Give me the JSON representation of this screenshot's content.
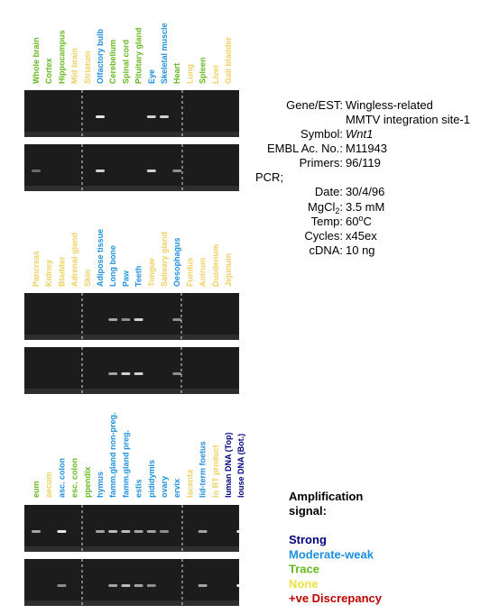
{
  "panels": [
    {
      "lanes": [
        {
          "label": "Whole brain",
          "color": "#66b81f"
        },
        {
          "label": "Cortex",
          "color": "#66b81f"
        },
        {
          "label": "Hippocampus",
          "color": "#66b81f"
        },
        {
          "label": "Mid brain",
          "color": "#f0d060"
        },
        {
          "label": "Striatum",
          "color": "#f0d060"
        },
        {
          "label": "Olfactory bulb",
          "color": "#1e90e0"
        },
        {
          "label": "Cerebellum",
          "color": "#66b81f"
        },
        {
          "label": "Spinal cord",
          "color": "#66b81f"
        },
        {
          "label": "Pituitary gland",
          "color": "#66b81f"
        },
        {
          "label": "Eye",
          "color": "#1e90e0"
        },
        {
          "label": "Skeletal muscle",
          "color": "#1e90e0"
        },
        {
          "label": "Heart",
          "color": "#66b81f"
        },
        {
          "label": "Lung",
          "color": "#f0d060"
        },
        {
          "label": "Spleen",
          "color": "#66b81f"
        },
        {
          "label": "Liver",
          "color": "#f0d060"
        },
        {
          "label": "Gall bladder",
          "color": "#f0d060"
        }
      ]
    },
    {
      "lanes": [
        {
          "label": "Pancreas",
          "color": "#f0d060"
        },
        {
          "label": "Kidney",
          "color": "#f0d060"
        },
        {
          "label": "Bladder",
          "color": "#f0d060"
        },
        {
          "label": "Adrenal gland",
          "color": "#f0d060"
        },
        {
          "label": "Skin",
          "color": "#f0d060"
        },
        {
          "label": "Adipose tissue",
          "color": "#1e90e0"
        },
        {
          "label": "Long bone",
          "color": "#1e90e0"
        },
        {
          "label": "Paw",
          "color": "#1e90e0"
        },
        {
          "label": "Teeth",
          "color": "#1e90e0"
        },
        {
          "label": "Tongue",
          "color": "#f0d060"
        },
        {
          "label": "Salivary gland",
          "color": "#f0d060"
        },
        {
          "label": "Oesophagus",
          "color": "#1e90e0"
        },
        {
          "label": "Fundus",
          "color": "#f0d060"
        },
        {
          "label": "Antrum",
          "color": "#f0d060"
        },
        {
          "label": "Duodenum",
          "color": "#f0d060"
        },
        {
          "label": "Jejunum",
          "color": "#f0d060"
        }
      ]
    },
    {
      "lanes": [
        {
          "label": "eum",
          "color": "#66b81f"
        },
        {
          "label": "aecum",
          "color": "#f0d060"
        },
        {
          "label": "asc. colon",
          "color": "#1e90e0"
        },
        {
          "label": "esc. colon",
          "color": "#66b81f"
        },
        {
          "label": "ppendix",
          "color": "#66b81f"
        },
        {
          "label": "hymus",
          "color": "#1e90e0"
        },
        {
          "label": "famm.gland non-preg.",
          "color": "#1e90e0"
        },
        {
          "label": "famm.gland preg.",
          "color": "#1e90e0"
        },
        {
          "label": "estis",
          "color": "#1e90e0"
        },
        {
          "label": "pididymis",
          "color": "#1e90e0"
        },
        {
          "label": "ovary",
          "color": "#1e90e0"
        },
        {
          "label": "ervix",
          "color": "#1e90e0"
        },
        {
          "label": "lacenta",
          "color": "#f0d060"
        },
        {
          "label": "lid-term foetus",
          "color": "#1e90e0"
        },
        {
          "label": "lo RT product",
          "color": "#f0d060"
        },
        {
          "label": "luman DNA (Top)",
          "color": "#000080"
        },
        {
          "label": "louse DNA (Bot.)",
          "color": "#000080"
        }
      ]
    }
  ],
  "info": {
    "gene_label": "Gene/EST:",
    "gene_line1": "Wingless-related",
    "gene_line2": "MMTV integration site-1",
    "symbol_label": "Symbol:",
    "symbol": "Wnt1",
    "embl_label": "EMBL Ac. No.:",
    "embl": "M11943",
    "primers_label": "Primers:",
    "primers": "96/119",
    "pcr_label": "PCR;",
    "date_label": "Date:",
    "date": "30/4/96",
    "mgcl_label": "MgCl",
    "mgcl_sub": "2",
    "mgcl_colon": ":",
    "mgcl": "3.5 mM",
    "temp_label": "Temp:",
    "temp_num": "60",
    "temp_sup": "o",
    "temp_unit": "C",
    "cycles_label": "Cycles:",
    "cycles": "x45ex",
    "cdna_label": "cDNA:",
    "cdna": "10 ng"
  },
  "legend": {
    "title_line1": "Amplification",
    "title_line2": "signal:",
    "items": [
      {
        "label": "Strong",
        "color": "#000080"
      },
      {
        "label": "Moderate-weak",
        "color": "#1e90e0"
      },
      {
        "label": "Trace",
        "color": "#66b81f"
      },
      {
        "label": "None",
        "color": "#f0e040"
      },
      {
        "label": "+ve Discrepancy",
        "color": "#c00000"
      }
    ]
  }
}
